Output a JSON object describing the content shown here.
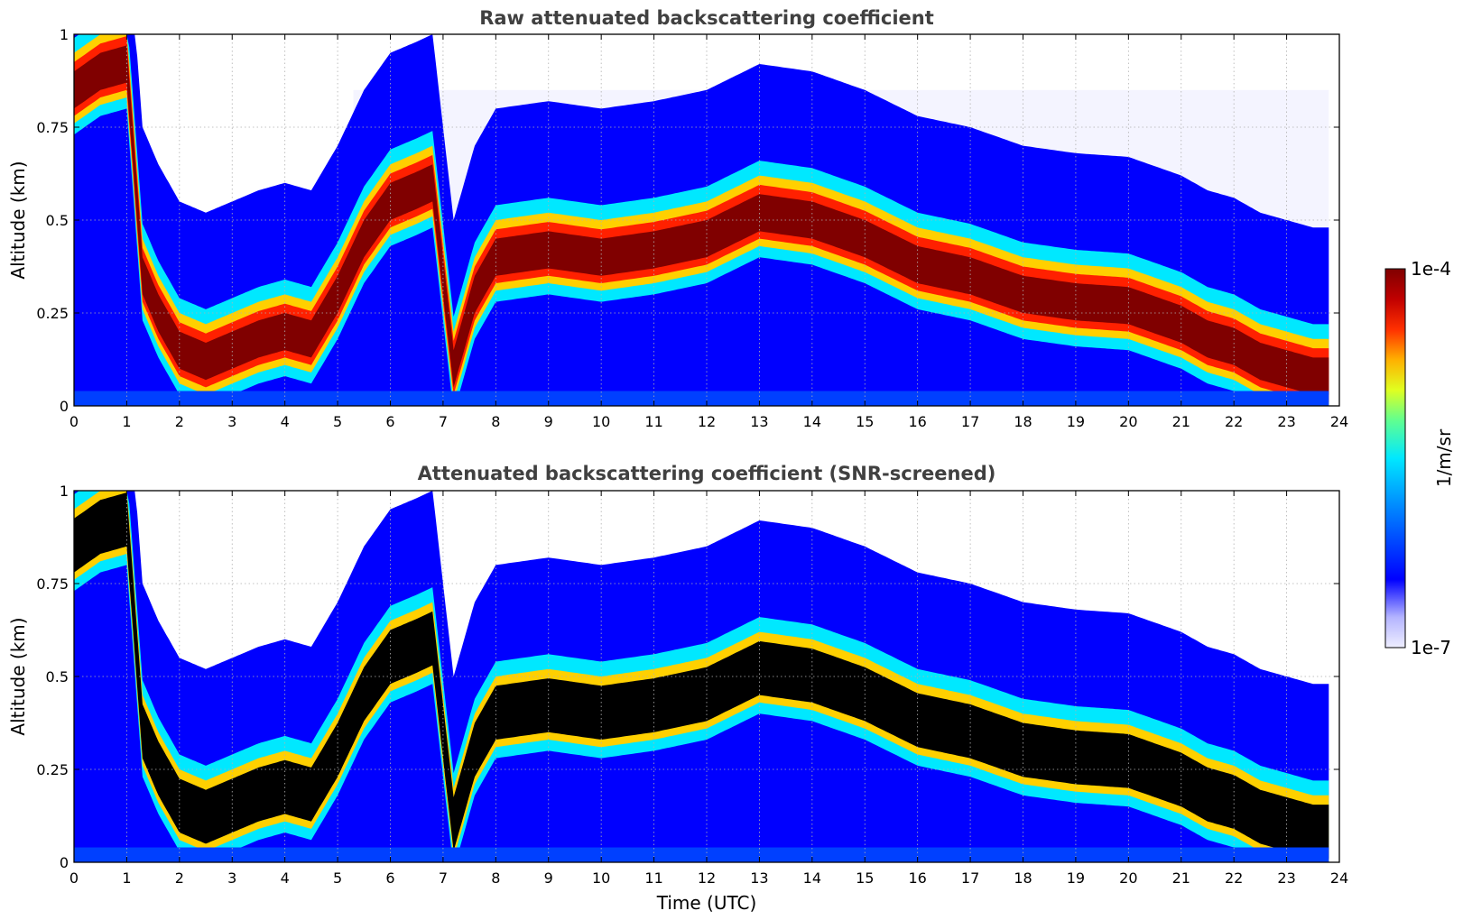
{
  "chart_data": [
    {
      "type": "heatmap",
      "title": "Raw attenuated backscattering coefficient",
      "xlabel": "",
      "ylabel": "Altitude (km)",
      "xlim": [
        0,
        24
      ],
      "ylim": [
        0,
        1
      ],
      "x_ticks": [
        "0",
        "1",
        "2",
        "3",
        "4",
        "5",
        "6",
        "7",
        "8",
        "9",
        "10",
        "11",
        "12",
        "13",
        "14",
        "15",
        "16",
        "17",
        "18",
        "19",
        "20",
        "21",
        "22",
        "23",
        "24"
      ],
      "y_ticks": [
        "0",
        "0.25",
        "0.5",
        "0.75",
        "1"
      ],
      "grid": true,
      "screened": false,
      "layer_peak_altitude_km": {
        "x": [
          0,
          0.5,
          1.0,
          1.3,
          1.6,
          2.0,
          2.5,
          3.0,
          3.5,
          4.0,
          4.5,
          5.0,
          5.5,
          6.0,
          6.5,
          6.8,
          7.2,
          7.6,
          8.0,
          9.0,
          10.0,
          11.0,
          12.0,
          13.0,
          14.0,
          15.0,
          16.0,
          17.0,
          18.0,
          19.0,
          20.0,
          21.0,
          21.5,
          22.0,
          22.5,
          23.0,
          23.5,
          23.8
        ],
        "y": [
          0.85,
          0.9,
          0.92,
          0.35,
          0.25,
          0.15,
          0.12,
          0.15,
          0.18,
          0.2,
          0.18,
          0.3,
          0.45,
          0.55,
          0.58,
          0.6,
          0.1,
          0.3,
          0.4,
          0.42,
          0.4,
          0.42,
          0.45,
          0.52,
          0.5,
          0.45,
          0.38,
          0.35,
          0.3,
          0.28,
          0.27,
          0.22,
          0.18,
          0.16,
          0.12,
          0.1,
          0.08,
          0.08
        ]
      }
    },
    {
      "type": "heatmap",
      "title": "Attenuated backscattering coefficient (SNR-screened)",
      "xlabel": "Time (UTC)",
      "ylabel": "Altitude (km)",
      "xlim": [
        0,
        24
      ],
      "ylim": [
        0,
        1
      ],
      "x_ticks": [
        "0",
        "1",
        "2",
        "3",
        "4",
        "5",
        "6",
        "7",
        "8",
        "9",
        "10",
        "11",
        "12",
        "13",
        "14",
        "15",
        "16",
        "17",
        "18",
        "19",
        "20",
        "21",
        "22",
        "23",
        "24"
      ],
      "y_ticks": [
        "0",
        "0.25",
        "0.5",
        "0.75",
        "1"
      ],
      "grid": true,
      "screened": true,
      "layer_peak_altitude_km": {
        "x": [
          0,
          0.5,
          1.0,
          1.3,
          1.6,
          2.0,
          2.5,
          3.0,
          3.5,
          4.0,
          4.5,
          5.0,
          5.5,
          6.0,
          6.5,
          6.8,
          7.2,
          7.6,
          8.0,
          9.0,
          10.0,
          11.0,
          12.0,
          13.0,
          14.0,
          15.0,
          16.0,
          17.0,
          18.0,
          19.0,
          20.0,
          21.0,
          21.5,
          22.0,
          22.5,
          23.0,
          23.5,
          23.8
        ],
        "y": [
          0.85,
          0.9,
          0.92,
          0.35,
          0.25,
          0.15,
          0.12,
          0.15,
          0.18,
          0.2,
          0.18,
          0.3,
          0.45,
          0.55,
          0.58,
          0.6,
          0.1,
          0.3,
          0.4,
          0.42,
          0.4,
          0.42,
          0.45,
          0.52,
          0.5,
          0.45,
          0.38,
          0.35,
          0.3,
          0.28,
          0.27,
          0.22,
          0.18,
          0.16,
          0.12,
          0.1,
          0.08,
          0.08
        ]
      }
    }
  ],
  "colorbar": {
    "label": "1/m/sr",
    "max_label": "1e-4",
    "min_label": "1e-7",
    "scale": "log",
    "colormap": [
      "#ffffff",
      "#c8c8ff",
      "#0000ff",
      "#00ffff",
      "#ffff00",
      "#ff0000",
      "#800000"
    ]
  }
}
